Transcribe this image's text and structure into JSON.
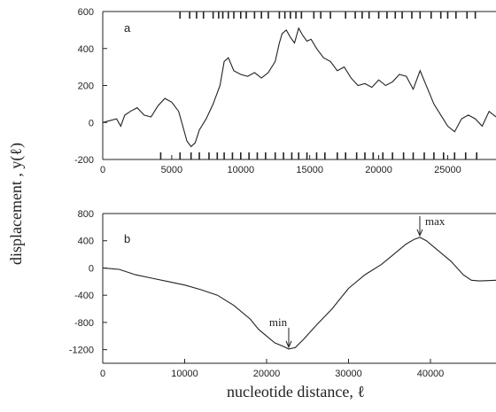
{
  "shared": {
    "ylabel": "displacement , y(ℓ)",
    "xlabel": "nucleotide distance,  ℓ"
  },
  "chart_data": [
    {
      "panel": "a",
      "type": "line",
      "xlim": [
        0,
        28500
      ],
      "ylim": [
        -200,
        600
      ],
      "xticks": [
        0,
        5000,
        10000,
        15000,
        20000,
        25000
      ],
      "yticks": [
        -200,
        0,
        200,
        400,
        600
      ],
      "grid": false,
      "series": [
        {
          "x": [
            0,
            500,
            1000,
            1300,
            1600,
            2000,
            2500,
            3000,
            3500,
            4000,
            4500,
            5000,
            5500,
            5800,
            6100,
            6400,
            6700,
            7000,
            7500,
            8000,
            8500,
            8800,
            9100,
            9500,
            10000,
            10500,
            11000,
            11500,
            12000,
            12500,
            12800,
            13000,
            13300,
            13600,
            13900,
            14200,
            14500,
            14800,
            15100,
            15500,
            16000,
            16500,
            17000,
            17500,
            18000,
            18500,
            19000,
            19500,
            20000,
            20500,
            21000,
            21500,
            22000,
            22500,
            23000,
            23500,
            24000,
            24500,
            25000,
            25500,
            26000,
            26500,
            27000,
            27500,
            28000,
            28500
          ],
          "y": [
            0,
            10,
            20,
            -20,
            40,
            60,
            80,
            40,
            30,
            90,
            130,
            110,
            60,
            -20,
            -100,
            -130,
            -110,
            -40,
            20,
            100,
            200,
            330,
            350,
            280,
            260,
            250,
            270,
            240,
            270,
            330,
            430,
            480,
            500,
            460,
            430,
            510,
            470,
            440,
            450,
            400,
            350,
            330,
            280,
            300,
            240,
            200,
            210,
            190,
            230,
            200,
            220,
            260,
            250,
            180,
            280,
            190,
            100,
            40,
            -20,
            -50,
            20,
            40,
            20,
            -20,
            60,
            30
          ]
        }
      ],
      "ticks_top": [
        5600,
        6300,
        6800,
        7300,
        8000,
        8400,
        8700,
        9100,
        9500,
        10000,
        10400,
        11000,
        11500,
        12000,
        12800,
        13200,
        13600,
        14000,
        14400,
        15300,
        15800,
        16500,
        17600,
        18300,
        18800,
        19300,
        20000,
        20600,
        21200,
        21700,
        22400,
        23000,
        23800,
        24500,
        25000,
        25600,
        26400,
        27000
      ],
      "ticks_bottom": [
        4200,
        5600,
        6400,
        7000,
        7700,
        8300,
        8800,
        9400,
        10000,
        10600,
        11200,
        11800,
        12500,
        13100,
        13700,
        14200,
        14800,
        15500,
        16100,
        17000,
        17600,
        18400,
        19000,
        19600,
        20300,
        21000,
        21800,
        22500,
        23300,
        24000,
        24700,
        25500,
        26300,
        27100
      ]
    },
    {
      "panel": "b",
      "type": "line",
      "xlim": [
        0,
        48000
      ],
      "ylim": [
        -1400,
        800
      ],
      "xticks": [
        0,
        10000,
        20000,
        30000,
        40000
      ],
      "yticks": [
        -1200,
        -800,
        -400,
        0,
        400,
        800
      ],
      "grid": false,
      "series": [
        {
          "x": [
            0,
            2000,
            4000,
            6000,
            8000,
            10000,
            12000,
            14000,
            16000,
            18000,
            19000,
            20000,
            21000,
            22000,
            22700,
            23500,
            24500,
            26000,
            28000,
            30000,
            32000,
            34000,
            35000,
            36000,
            37000,
            38000,
            38700,
            39500,
            41000,
            42500,
            44000,
            45000,
            46000,
            48000
          ],
          "y": [
            0,
            -20,
            -100,
            -150,
            -200,
            -250,
            -320,
            -400,
            -550,
            -750,
            -900,
            -1000,
            -1100,
            -1150,
            -1190,
            -1170,
            -1050,
            -850,
            -600,
            -300,
            -100,
            50,
            150,
            250,
            350,
            420,
            450,
            400,
            250,
            100,
            -100,
            -180,
            -190,
            -180
          ]
        }
      ],
      "annotations": [
        {
          "text": "max",
          "x": 38700,
          "y": 450
        },
        {
          "text": "min",
          "x": 22700,
          "y": -1190
        }
      ]
    }
  ]
}
